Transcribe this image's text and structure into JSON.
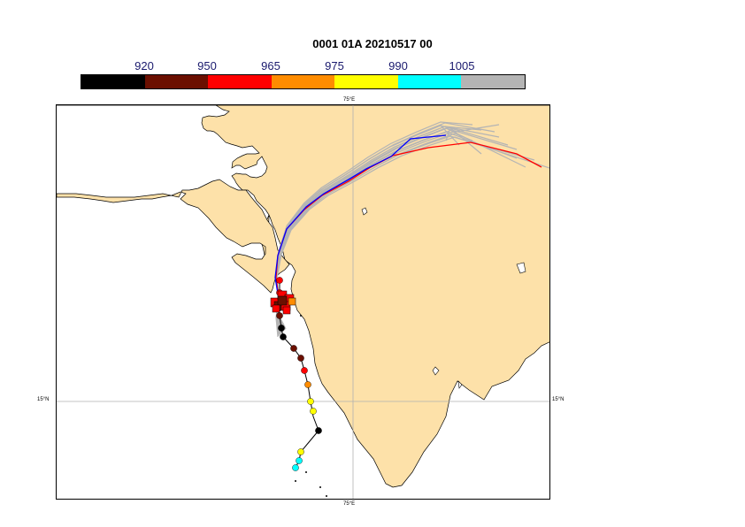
{
  "title": "0001 01A 20210517 00",
  "colorbar": {
    "labels": [
      "920",
      "950",
      "965",
      "975",
      "990",
      "1005"
    ],
    "colors": [
      "#000000",
      "#6b0f00",
      "#ff0000",
      "#ff8c00",
      "#ffff00",
      "#00ffff",
      "#b4b4b4"
    ]
  },
  "map": {
    "land_color": "#fde1a9",
    "sea_color": "#ffffff",
    "ensemble_color": "#b4b4b4",
    "forecast_red": "#ff0000",
    "forecast_blue": "#0000ff",
    "gridlines": {
      "lon": "75°E",
      "lat": "15°N"
    },
    "observed_track_intensity_hpa": [
      965,
      965,
      950,
      950,
      920,
      920,
      950,
      950,
      965,
      975,
      990,
      990,
      920,
      990,
      1005,
      1005
    ]
  }
}
